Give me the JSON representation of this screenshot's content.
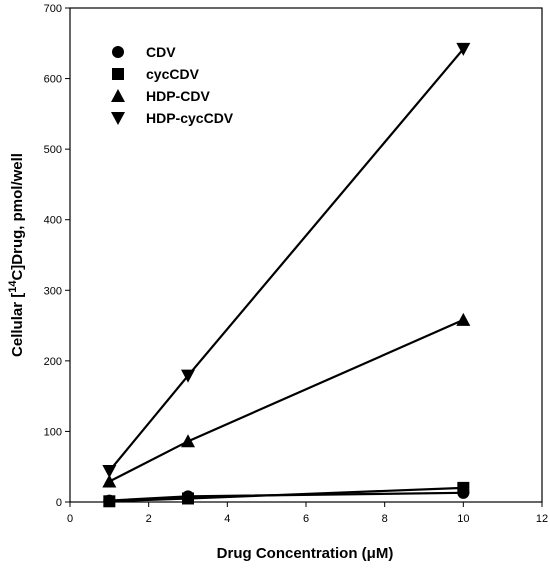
{
  "chart_data": {
    "type": "line",
    "xlabel": "Drug Concentration (μM)",
    "ylabel": "Cellular [14C]Drug, pmol/well",
    "ylabel_parts": {
      "pre": "Cellular [",
      "sup": "14",
      "post": "C]Drug, pmol/well"
    },
    "xlim": [
      0,
      12
    ],
    "ylim": [
      0,
      700
    ],
    "x_ticks": [
      0,
      2,
      4,
      6,
      8,
      10,
      12
    ],
    "y_ticks": [
      0,
      100,
      200,
      300,
      400,
      500,
      600,
      700
    ],
    "grid": false,
    "legend_position": "top-left",
    "x": [
      1,
      3,
      10
    ],
    "series": [
      {
        "name": "CDV",
        "marker": "circle",
        "values": [
          2,
          8,
          13
        ]
      },
      {
        "name": "cycCDV",
        "marker": "square",
        "values": [
          1,
          5,
          20
        ]
      },
      {
        "name": "HDP-CDV",
        "marker": "triangle-up",
        "values": [
          29,
          86,
          258
        ]
      },
      {
        "name": "HDP-cycCDV",
        "marker": "triangle-down",
        "values": [
          44,
          179,
          642
        ]
      }
    ]
  }
}
